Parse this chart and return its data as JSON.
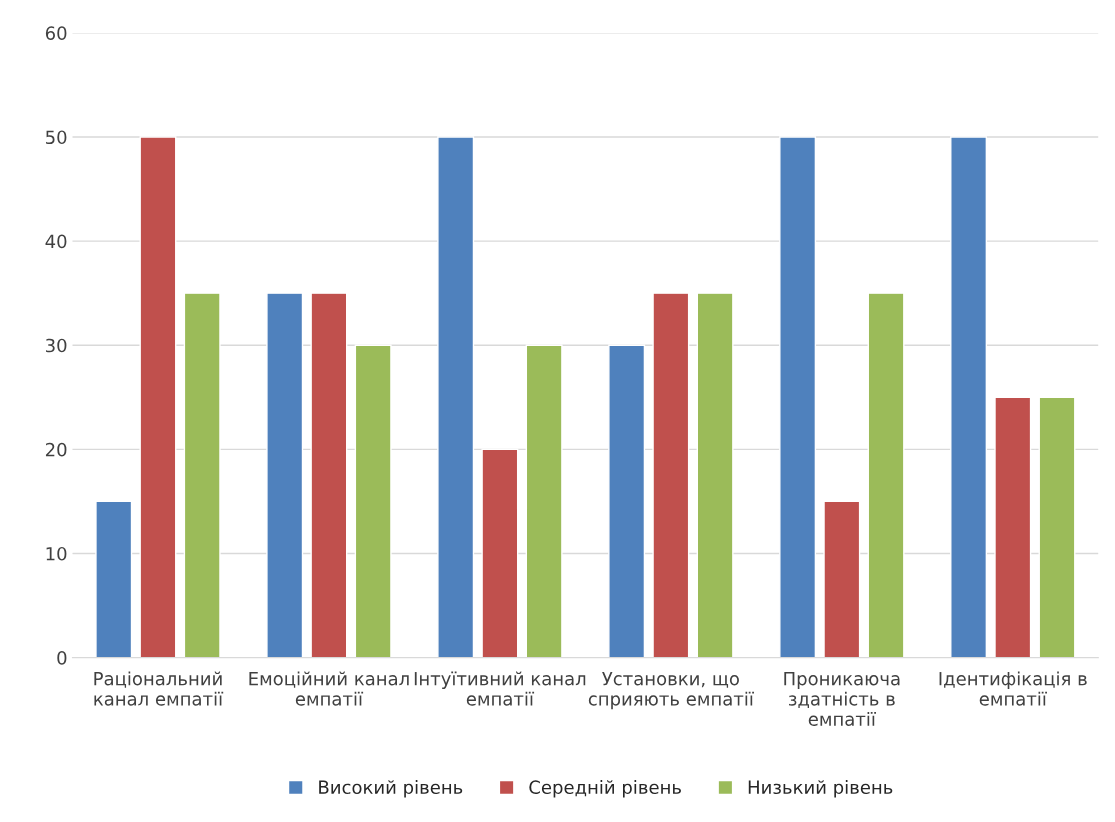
{
  "chart_data": {
    "type": "bar",
    "categories": [
      "Раціональний\nканал емпатії",
      "Емоційний канал\nемпатії",
      "Інтуїтивний канал\nемпатії",
      "Установки, що\nсприяють емпатії",
      "Проникаюча\nздатність в\nемпатії",
      "Ідентифікація в\nемпатії"
    ],
    "series": [
      {
        "name": "Високий рівень",
        "color": "#4f81bd",
        "values": [
          15,
          35,
          50,
          30,
          50,
          50
        ]
      },
      {
        "name": "Середній рівень",
        "color": "#c0504d",
        "values": [
          50,
          35,
          20,
          35,
          15,
          25
        ]
      },
      {
        "name": "Низький рівень",
        "color": "#9bbb59",
        "values": [
          35,
          30,
          30,
          35,
          35,
          25
        ]
      }
    ],
    "ylim": [
      0,
      60
    ],
    "yticks": [
      0,
      10,
      20,
      30,
      40,
      50,
      60
    ],
    "grid": "y",
    "legend": "bottom"
  }
}
